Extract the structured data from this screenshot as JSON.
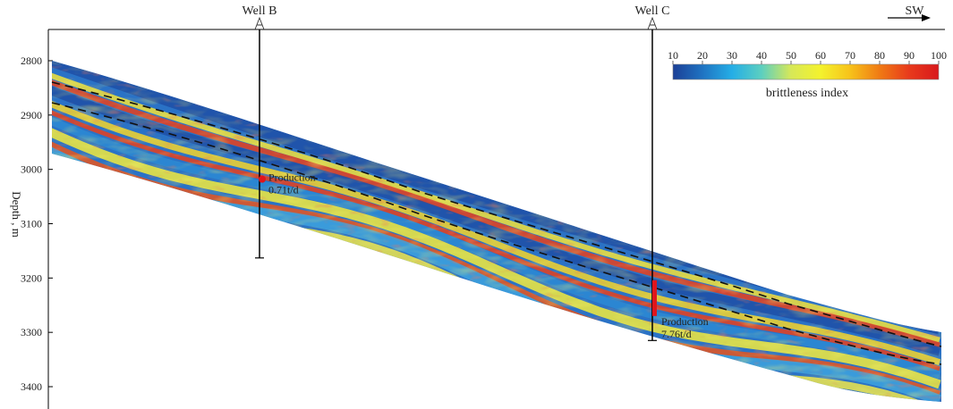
{
  "chart_data": {
    "type": "heatmap",
    "title": "",
    "xlabel": "",
    "ylabel": "Depth , m",
    "ylim": [
      2750,
      3460
    ],
    "y_ticks": [
      2800,
      2900,
      3000,
      3100,
      3200,
      3300,
      3400
    ],
    "direction_label": "SW",
    "colorbar": {
      "label": "brittleness index",
      "range": [
        10,
        100
      ],
      "ticks": [
        10,
        20,
        30,
        40,
        50,
        60,
        70,
        80,
        90,
        100
      ],
      "colors": [
        "#1c3f96",
        "#1f73c2",
        "#25aee6",
        "#5ccfc0",
        "#d7e858",
        "#f4f22d",
        "#f7c21a",
        "#f07a14",
        "#e83a1c",
        "#d8181c"
      ]
    },
    "wells": [
      {
        "name": "Well B",
        "top_depth": 2750,
        "bottom_depth": 3163,
        "production_label": "Production",
        "production_value": "0.71t/d",
        "production_depth": 3018
      },
      {
        "name": "Well C",
        "top_depth": 2750,
        "bottom_depth": 3315,
        "production_label": "Production",
        "production_value": "7.76t/d",
        "production_depth": 3237
      }
    ]
  }
}
